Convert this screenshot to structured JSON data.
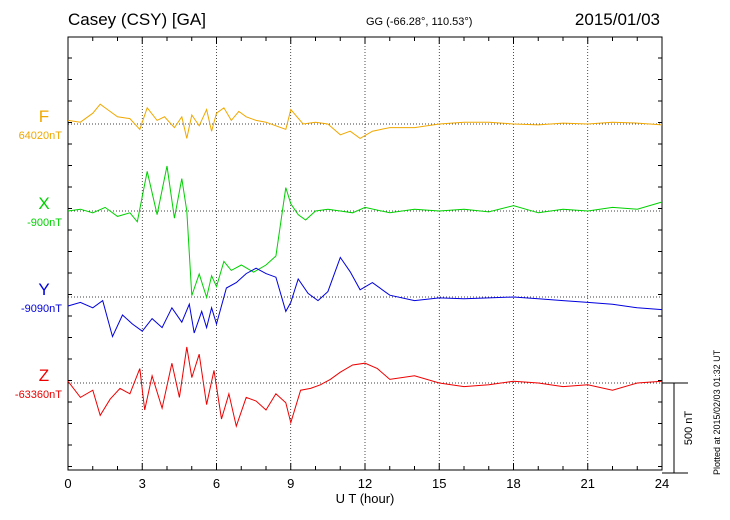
{
  "header": {
    "station": "Casey (CSY)  [GA]",
    "coords": "GG (-66.28°, 110.53°)",
    "date": "2015/01/03"
  },
  "side_note": "Plotted at 2015/02/03 01:32 UT",
  "chart_data": {
    "type": "line",
    "xlabel": "U T (hour)",
    "xlim": [
      0,
      24
    ],
    "xticks": [
      0,
      3,
      6,
      9,
      12,
      15,
      18,
      21,
      24
    ],
    "grid": true,
    "scale_bar": "500 nT",
    "series": [
      {
        "name": "F",
        "baseline": "64020nT",
        "color": "#f0a800",
        "x": [
          0,
          0.5,
          1,
          1.3,
          1.6,
          2,
          2.5,
          2.9,
          3.2,
          3.6,
          3.9,
          4.3,
          4.6,
          4.8,
          5.0,
          5.3,
          5.6,
          5.8,
          6.0,
          6.3,
          6.6,
          6.9,
          7.2,
          7.6,
          8.0,
          8.4,
          8.8,
          9.0,
          9.5,
          10,
          10.5,
          11,
          11.4,
          11.8,
          12.3,
          13,
          14,
          15,
          16,
          17,
          18,
          19,
          20,
          21,
          22,
          23,
          24
        ],
        "y": [
          20,
          10,
          60,
          110,
          80,
          40,
          30,
          -30,
          90,
          20,
          40,
          -20,
          40,
          -80,
          50,
          -10,
          80,
          -40,
          60,
          90,
          20,
          70,
          40,
          20,
          10,
          -10,
          -30,
          80,
          0,
          10,
          0,
          -60,
          -40,
          -80,
          -40,
          -20,
          -20,
          0,
          10,
          10,
          0,
          -5,
          5,
          0,
          10,
          5,
          -5
        ]
      },
      {
        "name": "X",
        "baseline": "-900nT",
        "color": "#00d000",
        "x": [
          0,
          0.5,
          1,
          1.5,
          2,
          2.5,
          2.8,
          3.2,
          3.6,
          4.0,
          4.3,
          4.6,
          4.8,
          5.0,
          5.3,
          5.6,
          5.8,
          6.0,
          6.3,
          6.6,
          7.0,
          7.5,
          8.0,
          8.4,
          8.8,
          9.0,
          9.3,
          9.6,
          10,
          10.5,
          11,
          11.5,
          12,
          13,
          14,
          15,
          16,
          17,
          18,
          19,
          20,
          21,
          22,
          23,
          24
        ],
        "y": [
          0,
          10,
          -10,
          20,
          -30,
          -10,
          -60,
          220,
          -20,
          250,
          -40,
          180,
          0,
          -470,
          -350,
          -480,
          -360,
          -420,
          -280,
          -330,
          -300,
          -340,
          -300,
          -250,
          130,
          40,
          -20,
          -50,
          0,
          10,
          0,
          -10,
          20,
          -10,
          10,
          0,
          10,
          -5,
          30,
          -10,
          10,
          0,
          20,
          10,
          50
        ]
      },
      {
        "name": "Y",
        "baseline": "-9090nT",
        "color": "#0000dd",
        "x": [
          0,
          0.5,
          1,
          1.4,
          1.8,
          2.2,
          2.6,
          3.0,
          3.4,
          3.8,
          4.2,
          4.6,
          4.9,
          5.1,
          5.4,
          5.6,
          5.8,
          6.0,
          6.4,
          6.8,
          7.2,
          7.6,
          8.0,
          8.4,
          8.8,
          9.0,
          9.3,
          9.7,
          10.1,
          10.5,
          11.0,
          11.4,
          11.8,
          12.3,
          13.0,
          14,
          15,
          16,
          17,
          18,
          19,
          20,
          21,
          22,
          23,
          24
        ],
        "y": [
          -50,
          -30,
          -60,
          -20,
          -220,
          -100,
          -150,
          -190,
          -120,
          -170,
          -60,
          -140,
          -40,
          -200,
          -80,
          -170,
          -60,
          -150,
          50,
          80,
          130,
          160,
          130,
          110,
          -80,
          -30,
          100,
          20,
          -20,
          30,
          220,
          140,
          40,
          80,
          10,
          -20,
          -5,
          -10,
          -5,
          0,
          -10,
          -20,
          -30,
          -40,
          -60,
          -70
        ]
      },
      {
        "name": "Z",
        "baseline": "-63360nT",
        "color": "#ee0000",
        "x": [
          0,
          0.5,
          1,
          1.3,
          1.7,
          2.1,
          2.5,
          2.9,
          3.1,
          3.4,
          3.8,
          4.2,
          4.5,
          4.8,
          5.0,
          5.3,
          5.6,
          5.9,
          6.2,
          6.5,
          6.8,
          7.2,
          7.6,
          8.0,
          8.4,
          8.8,
          9.0,
          9.4,
          9.8,
          10.2,
          10.6,
          11.0,
          11.5,
          12.0,
          12.5,
          13,
          14,
          15,
          16,
          17,
          18,
          19,
          20,
          21,
          22,
          23,
          24
        ],
        "y": [
          10,
          -80,
          -40,
          -180,
          -90,
          -30,
          -60,
          80,
          -150,
          40,
          -140,
          110,
          -80,
          200,
          30,
          160,
          -120,
          70,
          -200,
          -60,
          -240,
          -80,
          -100,
          -150,
          -60,
          -110,
          -220,
          -40,
          -30,
          -10,
          20,
          60,
          100,
          110,
          80,
          20,
          40,
          0,
          -20,
          -10,
          10,
          0,
          -20,
          -10,
          -40,
          0,
          10
        ]
      }
    ]
  }
}
